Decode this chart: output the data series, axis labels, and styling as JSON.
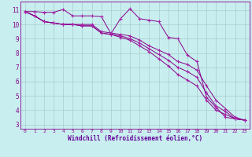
{
  "bg_color": "#c8eef0",
  "grid_color": "#aacccc",
  "line_color": "#880088",
  "marker_color": "#aa22aa",
  "xlabel": "Windchill (Refroidissement éolien,°C)",
  "xlabel_color": "#660099",
  "xlim": [
    -0.5,
    23.5
  ],
  "ylim": [
    2.7,
    11.6
  ],
  "yticks": [
    3,
    4,
    5,
    6,
    7,
    8,
    9,
    10,
    11
  ],
  "xticks": [
    0,
    1,
    2,
    3,
    4,
    5,
    6,
    7,
    8,
    9,
    10,
    11,
    12,
    13,
    14,
    15,
    16,
    17,
    18,
    19,
    20,
    21,
    22,
    23
  ],
  "series": [
    [
      10.9,
      10.9,
      10.85,
      10.85,
      11.05,
      10.6,
      10.6,
      10.6,
      10.55,
      9.35,
      10.4,
      11.1,
      10.4,
      10.3,
      10.2,
      9.1,
      9.0,
      7.85,
      7.4,
      4.9,
      4.2,
      3.5,
      3.4,
      3.3
    ],
    [
      10.9,
      10.6,
      10.2,
      10.1,
      10.0,
      10.0,
      10.0,
      10.0,
      9.5,
      9.4,
      9.3,
      9.2,
      8.9,
      8.5,
      8.2,
      7.9,
      7.4,
      7.2,
      6.8,
      5.7,
      4.7,
      4.1,
      3.5,
      3.3
    ],
    [
      10.9,
      10.6,
      10.2,
      10.1,
      10.0,
      10.0,
      9.9,
      9.9,
      9.4,
      9.3,
      9.2,
      9.0,
      8.7,
      8.3,
      7.9,
      7.5,
      7.0,
      6.7,
      6.3,
      5.2,
      4.3,
      3.9,
      3.4,
      3.3
    ],
    [
      10.9,
      10.6,
      10.2,
      10.1,
      10.0,
      10.0,
      9.9,
      9.9,
      9.4,
      9.3,
      9.1,
      8.9,
      8.5,
      8.1,
      7.6,
      7.1,
      6.5,
      6.1,
      5.7,
      4.7,
      4.0,
      3.7,
      3.4,
      3.3
    ]
  ]
}
